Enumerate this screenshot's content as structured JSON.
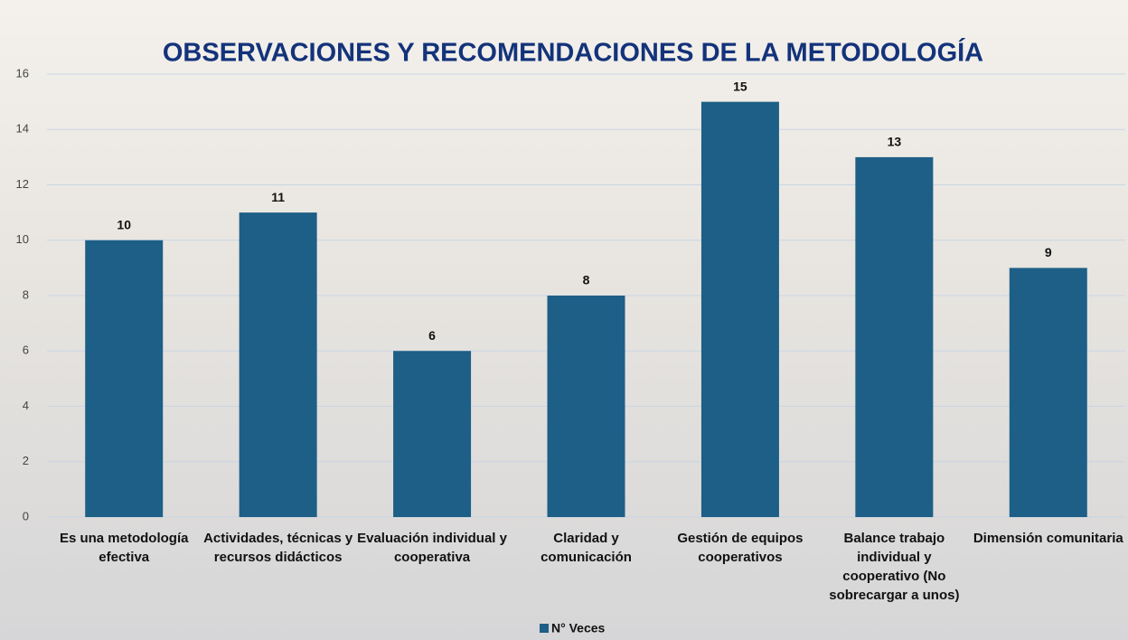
{
  "chart_data": {
    "type": "bar",
    "title": "OBSERVACIONES Y RECOMENDACIONES DE LA METODOLOGÍA",
    "categories": [
      "Es una metodología efectiva",
      "Actividades, técnicas y recursos didácticos",
      "Evaluación individual y cooperativa",
      "Claridad y comunicación",
      "Gestión de equipos cooperativos",
      "Balance trabajo individual y cooperativo (No sobrecargar a unos)",
      "Dimensión comunitaria"
    ],
    "series": [
      {
        "name": "N° Veces",
        "color": "#1d5f86",
        "values": [
          10,
          11,
          6,
          8,
          15,
          13,
          9
        ]
      }
    ],
    "ylim": [
      0,
      16
    ],
    "yticks": [
      0,
      2,
      4,
      6,
      8,
      10,
      12,
      14,
      16
    ],
    "grid": true,
    "legend": "bottom"
  }
}
